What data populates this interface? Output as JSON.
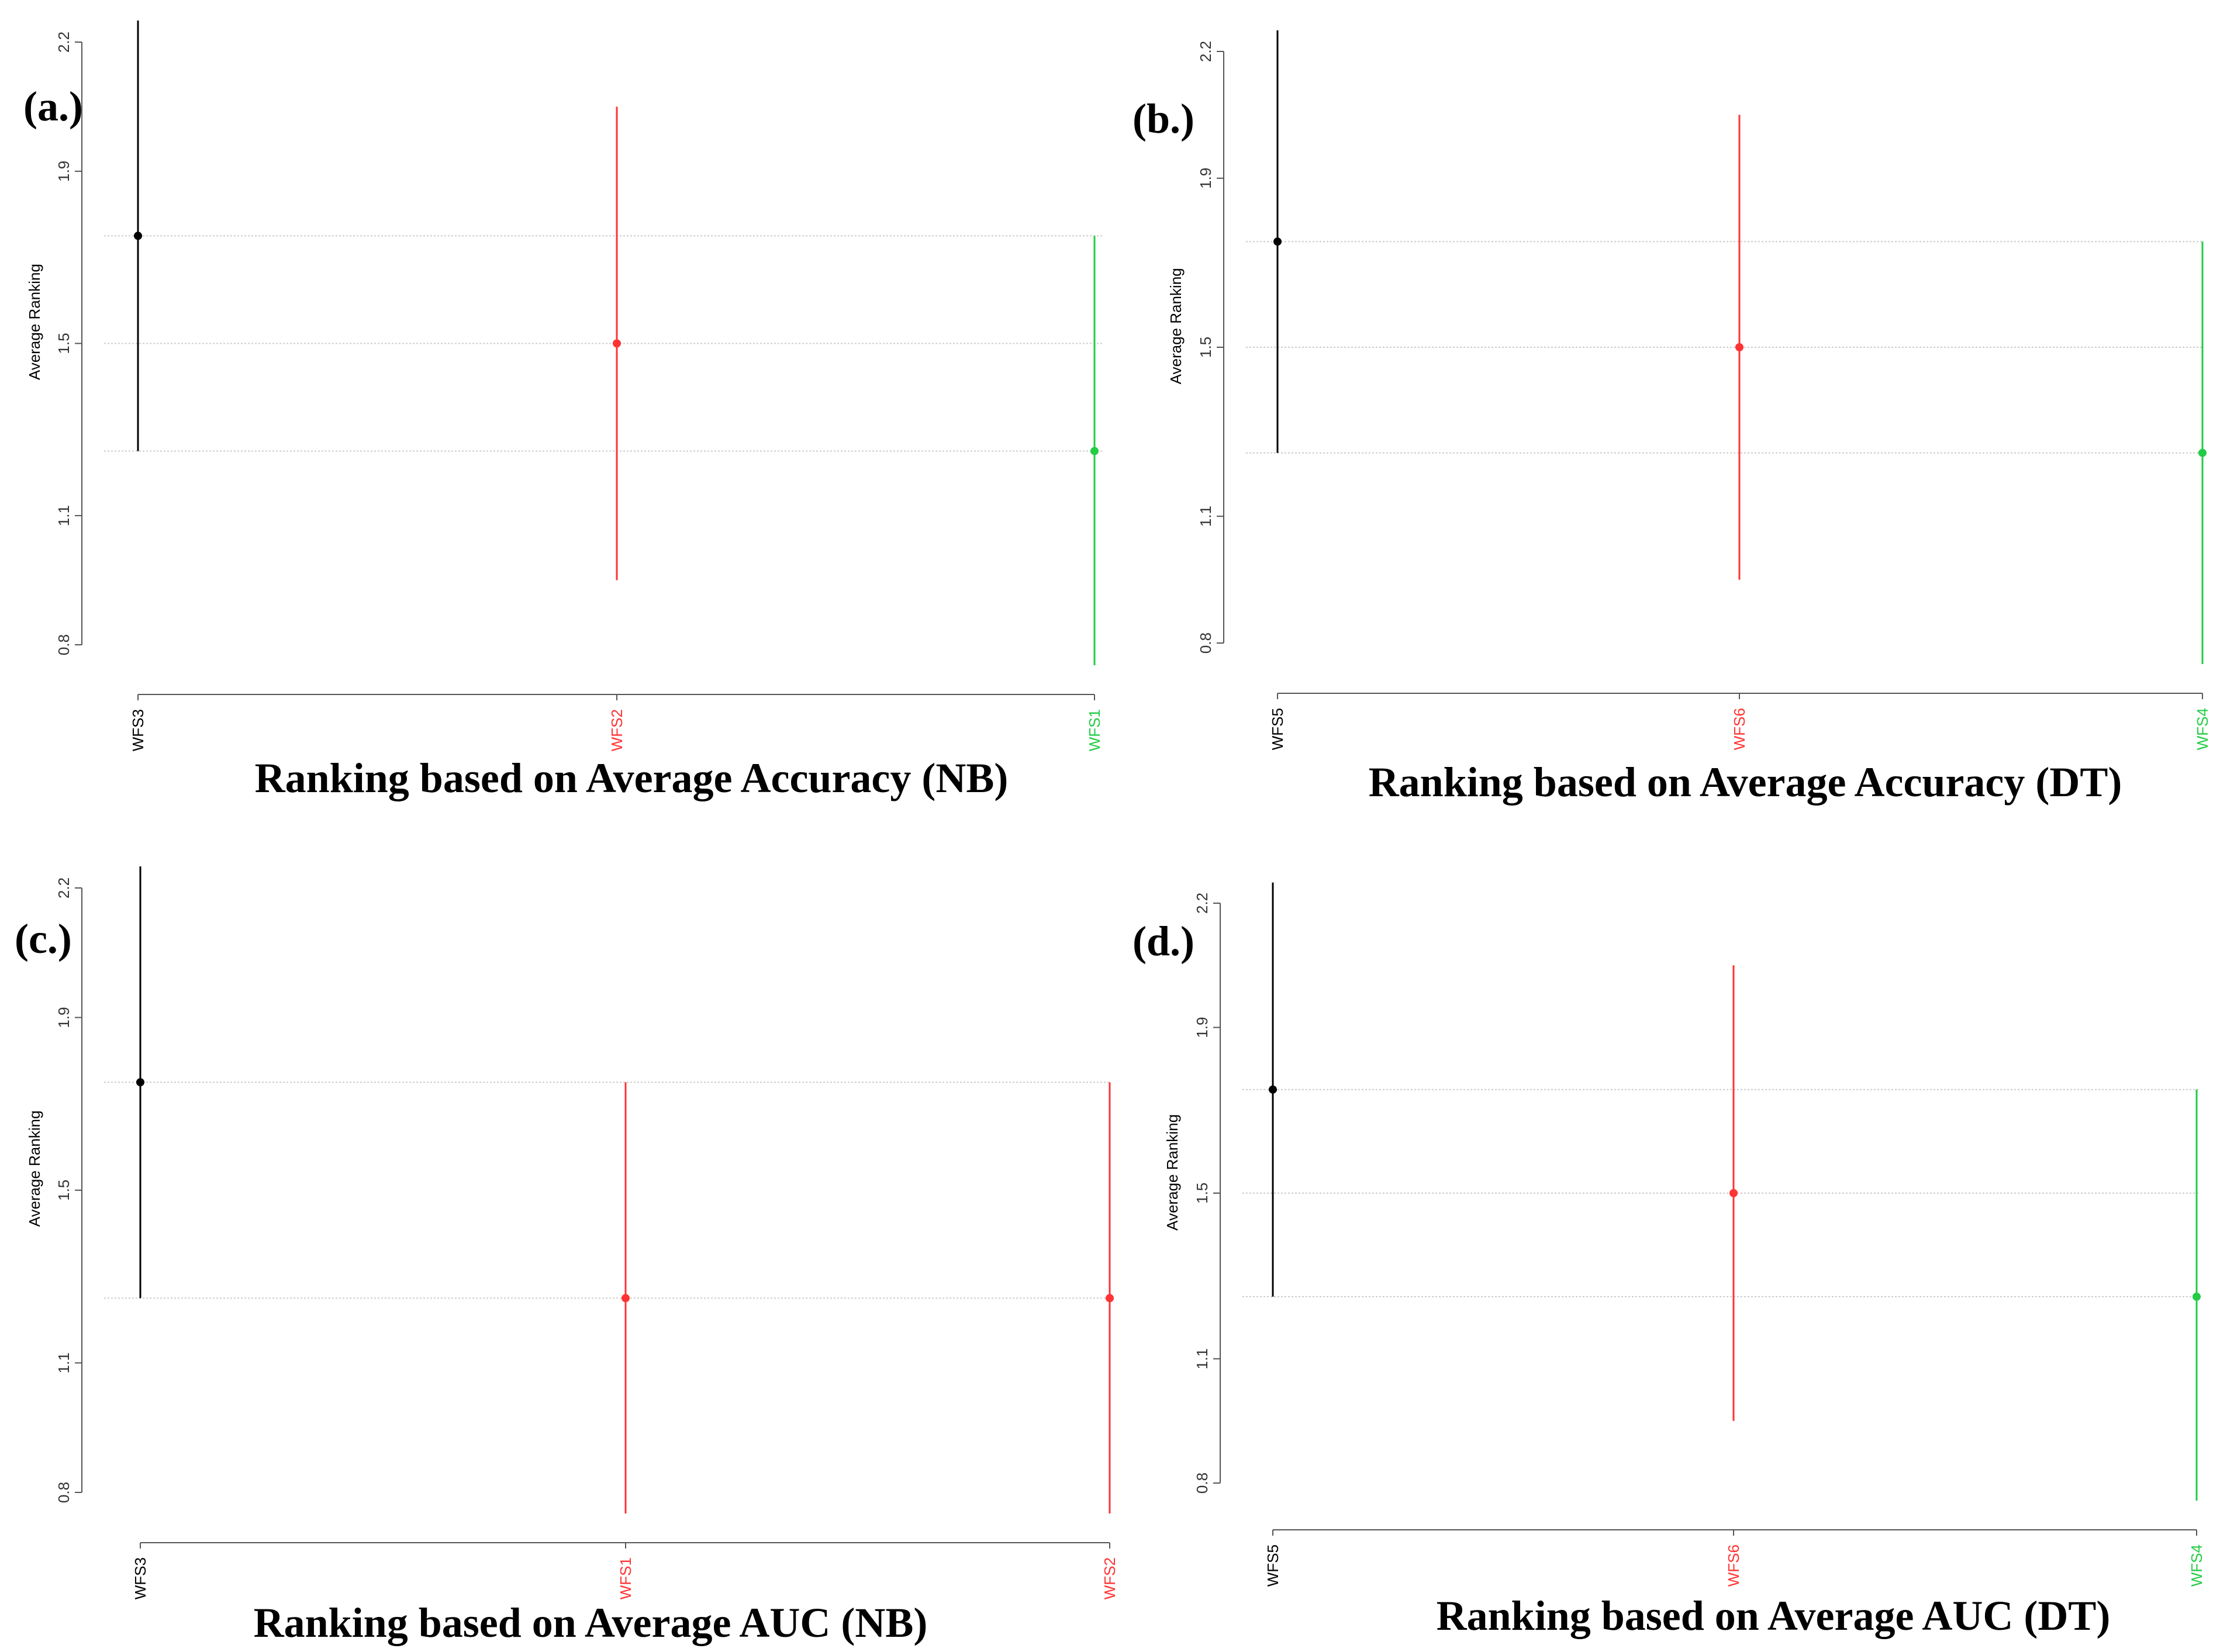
{
  "colors": {
    "black": "#000000",
    "red": "#ff3333",
    "green": "#22cc44",
    "grid": "#cccccc",
    "axis": "#555555"
  },
  "chart_data": [
    {
      "type": "scatter",
      "panel_label": "(a.)",
      "title": "Ranking based on Average Accuracy (NB)",
      "ylabel": "Average Ranking",
      "xlabel": "",
      "ylim": [
        0.8,
        2.2
      ],
      "yticks": [
        "0.8",
        "1.1",
        "1.5",
        "1.9",
        "2.2"
      ],
      "categories": [
        "WFS3",
        "WFS2",
        "WFS1"
      ],
      "category_colors": [
        "black",
        "red",
        "green"
      ],
      "values": [
        1.75,
        1.5,
        1.25
      ],
      "interval_low": [
        1.25,
        0.95,
        0.75
      ],
      "interval_high": [
        2.25,
        2.05,
        1.75
      ],
      "reference_lines": [
        1.75,
        1.5,
        1.25
      ]
    },
    {
      "type": "scatter",
      "panel_label": "(b.)",
      "title": "Ranking based on Average Accuracy (DT)",
      "ylabel": "Average Ranking",
      "xlabel": "",
      "ylim": [
        0.8,
        2.2
      ],
      "yticks": [
        "0.8",
        "1.1",
        "1.5",
        "1.9",
        "2.2"
      ],
      "categories": [
        "WFS5",
        "WFS6",
        "WFS4"
      ],
      "category_colors": [
        "black",
        "red",
        "green"
      ],
      "values": [
        1.75,
        1.5,
        1.25
      ],
      "interval_low": [
        1.25,
        0.95,
        0.75
      ],
      "interval_high": [
        2.25,
        2.05,
        1.75
      ],
      "reference_lines": [
        1.75,
        1.5,
        1.25
      ]
    },
    {
      "type": "scatter",
      "panel_label": "(c.)",
      "title": "Ranking based on Average AUC (NB)",
      "ylabel": "Average Ranking",
      "xlabel": "",
      "ylim": [
        0.8,
        2.2
      ],
      "yticks": [
        "0.8",
        "1.1",
        "1.5",
        "1.9",
        "2.2"
      ],
      "categories": [
        "WFS3",
        "WFS1",
        "WFS2"
      ],
      "category_colors": [
        "black",
        "red",
        "red"
      ],
      "values": [
        1.75,
        1.25,
        1.25
      ],
      "interval_low": [
        1.25,
        0.75,
        0.75
      ],
      "interval_high": [
        2.25,
        1.75,
        1.75
      ],
      "reference_lines": [
        1.75,
        1.25
      ]
    },
    {
      "type": "scatter",
      "panel_label": "(d.)",
      "title": "Ranking based on Average AUC (DT)",
      "ylabel": "Average Ranking",
      "xlabel": "",
      "ylim": [
        0.8,
        2.2
      ],
      "yticks": [
        "0.8",
        "1.1",
        "1.5",
        "1.9",
        "2.2"
      ],
      "categories": [
        "WFS5",
        "WFS6",
        "WFS4"
      ],
      "category_colors": [
        "black",
        "red",
        "green"
      ],
      "values": [
        1.75,
        1.5,
        1.25
      ],
      "interval_low": [
        1.25,
        0.95,
        0.75
      ],
      "interval_high": [
        2.25,
        2.05,
        1.75
      ],
      "reference_lines": [
        1.75,
        1.5,
        1.25
      ]
    }
  ]
}
